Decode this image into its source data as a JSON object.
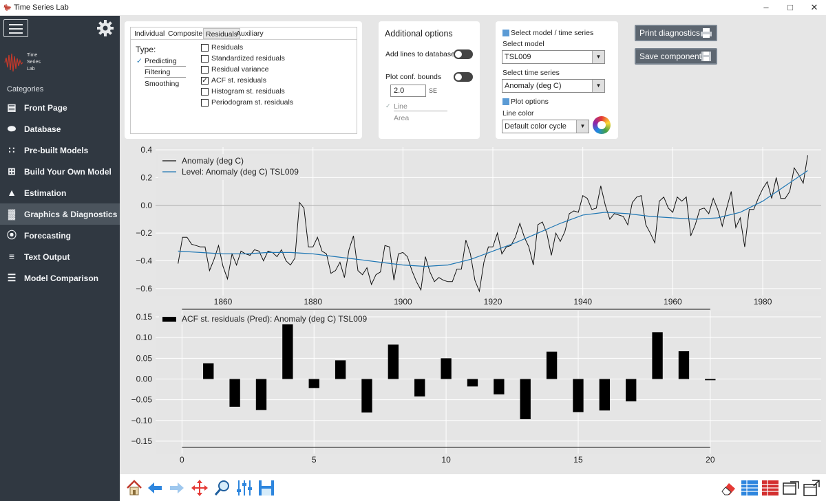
{
  "window": {
    "title": "Time Series Lab"
  },
  "sidebar": {
    "logo_text": [
      "Time",
      "Series",
      "Lab"
    ],
    "categories_label": "Categories",
    "items": [
      {
        "label": "Front Page",
        "icon": "front-page-icon"
      },
      {
        "label": "Database",
        "icon": "database-icon"
      },
      {
        "label": "Pre-built Models",
        "icon": "pre-built-models-icon"
      },
      {
        "label": "Build Your Own Model",
        "icon": "build-model-icon"
      },
      {
        "label": "Estimation",
        "icon": "estimation-icon"
      },
      {
        "label": "Graphics & Diagnostics",
        "icon": "graphics-icon",
        "active": true
      },
      {
        "label": "Forecasting",
        "icon": "binoculars-icon"
      },
      {
        "label": "Text Output",
        "icon": "text-output-icon"
      },
      {
        "label": "Model Comparison",
        "icon": "model-comparison-icon"
      }
    ]
  },
  "tabs": {
    "items": [
      "Individual",
      "Composite",
      "Residuals",
      "Auxiliary"
    ],
    "active": "Residuals"
  },
  "type_panel": {
    "label": "Type:",
    "options": [
      "Predicting",
      "Filtering",
      "Smoothing"
    ],
    "selected": "Predicting"
  },
  "residual_checks": [
    {
      "label": "Residuals",
      "checked": false
    },
    {
      "label": "Standardized residuals",
      "checked": false
    },
    {
      "label": "Residual variance",
      "checked": false
    },
    {
      "label": "ACF st. residuals",
      "checked": true
    },
    {
      "label": "Histogram st. residuals",
      "checked": false
    },
    {
      "label": "Periodogram st. residuals",
      "checked": false
    }
  ],
  "additional": {
    "title": "Additional options",
    "add_lines_label": "Add lines to database",
    "conf_bounds_label": "Plot conf. bounds",
    "conf_value": "2.0",
    "conf_unit": "SE",
    "line_label": "Line",
    "area_label": "Area"
  },
  "model_panel": {
    "select_header": "Select model / time series",
    "select_model_label": "Select model",
    "model_value": "TSL009",
    "select_series_label": "Select time series",
    "series_value": "Anomaly (deg C)",
    "plot_options_label": "Plot options",
    "line_color_label": "Line color",
    "line_color_value": "Default color cycle"
  },
  "buttons": {
    "print_diagnostics": "Print diagnostics",
    "save_components": "Save components"
  },
  "chart_data": [
    {
      "type": "line",
      "legend": "top-left",
      "ylim": [
        -0.65,
        0.42
      ],
      "yticks": [
        "0.4",
        "0.2",
        "0.0",
        "−0.2",
        "−0.4",
        "−0.6"
      ],
      "ytick_values": [
        0.4,
        0.2,
        0.0,
        -0.2,
        -0.4,
        -0.6
      ],
      "xticks": [
        "1860",
        "1880",
        "1900",
        "1920",
        "1940",
        "1960",
        "1980"
      ],
      "xtick_values": [
        1860,
        1880,
        1900,
        1920,
        1940,
        1960,
        1980
      ],
      "xlim": [
        1845,
        1993
      ],
      "grid": true,
      "series": [
        {
          "name": "Anomaly (deg C)",
          "color": "#111111",
          "x": [
            1850,
            1851,
            1852,
            1853,
            1854,
            1855,
            1856,
            1857,
            1858,
            1859,
            1860,
            1861,
            1862,
            1863,
            1864,
            1865,
            1866,
            1867,
            1868,
            1869,
            1870,
            1871,
            1872,
            1873,
            1874,
            1875,
            1876,
            1877,
            1878,
            1879,
            1880,
            1881,
            1882,
            1883,
            1884,
            1885,
            1886,
            1887,
            1888,
            1889,
            1890,
            1891,
            1892,
            1893,
            1894,
            1895,
            1896,
            1897,
            1898,
            1899,
            1900,
            1901,
            1902,
            1903,
            1904,
            1905,
            1906,
            1907,
            1908,
            1909,
            1910,
            1911,
            1912,
            1913,
            1914,
            1915,
            1916,
            1917,
            1918,
            1919,
            1920,
            1921,
            1922,
            1923,
            1924,
            1925,
            1926,
            1927,
            1928,
            1929,
            1930,
            1931,
            1932,
            1933,
            1934,
            1935,
            1936,
            1937,
            1938,
            1939,
            1940,
            1941,
            1942,
            1943,
            1944,
            1945,
            1946,
            1947,
            1948,
            1949,
            1950,
            1951,
            1952,
            1953,
            1954,
            1955,
            1956,
            1957,
            1958,
            1959,
            1960,
            1961,
            1962,
            1963,
            1964,
            1965,
            1966,
            1967,
            1968,
            1969,
            1970,
            1971,
            1972,
            1973,
            1974,
            1975,
            1976,
            1977,
            1978,
            1979,
            1980,
            1981,
            1982,
            1983,
            1984,
            1985,
            1986,
            1987,
            1988,
            1989,
            1990
          ],
          "y": [
            -0.42,
            -0.23,
            -0.23,
            -0.28,
            -0.29,
            -0.3,
            -0.3,
            -0.47,
            -0.39,
            -0.29,
            -0.44,
            -0.53,
            -0.35,
            -0.43,
            -0.33,
            -0.35,
            -0.36,
            -0.32,
            -0.33,
            -0.4,
            -0.33,
            -0.34,
            -0.37,
            -0.32,
            -0.4,
            -0.43,
            -0.38,
            0.02,
            -0.02,
            -0.3,
            -0.3,
            -0.23,
            -0.33,
            -0.35,
            -0.49,
            -0.47,
            -0.41,
            -0.52,
            -0.32,
            -0.22,
            -0.47,
            -0.5,
            -0.45,
            -0.57,
            -0.5,
            -0.48,
            -0.29,
            -0.3,
            -0.54,
            -0.35,
            -0.34,
            -0.37,
            -0.47,
            -0.55,
            -0.61,
            -0.37,
            -0.48,
            -0.55,
            -0.52,
            -0.54,
            -0.55,
            -0.55,
            -0.46,
            -0.46,
            -0.25,
            -0.35,
            -0.54,
            -0.62,
            -0.41,
            -0.3,
            -0.3,
            -0.2,
            -0.35,
            -0.3,
            -0.29,
            -0.23,
            -0.13,
            -0.23,
            -0.3,
            -0.43,
            -0.14,
            -0.12,
            -0.2,
            -0.36,
            -0.2,
            -0.26,
            -0.19,
            -0.06,
            -0.04,
            -0.05,
            0.07,
            0.05,
            -0.03,
            -0.02,
            0.14,
            0.0,
            -0.1,
            -0.06,
            -0.07,
            -0.08,
            -0.14,
            0.02,
            0.06,
            0.07,
            -0.14,
            -0.2,
            -0.27,
            0.03,
            0.06,
            -0.02,
            -0.05,
            0.06,
            0.03,
            0.06,
            -0.22,
            -0.14,
            -0.03,
            -0.02,
            -0.06,
            0.05,
            -0.03,
            -0.15,
            -0.02,
            0.1,
            -0.16,
            -0.09,
            -0.3,
            -0.03,
            -0.03,
            0.05,
            0.12,
            0.17,
            0.05,
            0.2,
            0.05,
            0.05,
            0.1,
            0.27,
            0.22,
            0.16,
            0.36
          ]
        },
        {
          "name": "Level: Anomaly (deg C) TSL009",
          "color": "#1f77b4",
          "x": [
            1850,
            1855,
            1860,
            1865,
            1870,
            1875,
            1880,
            1885,
            1890,
            1895,
            1900,
            1905,
            1910,
            1915,
            1920,
            1925,
            1930,
            1935,
            1940,
            1945,
            1950,
            1955,
            1960,
            1965,
            1970,
            1975,
            1980,
            1985,
            1990
          ],
          "y": [
            -0.33,
            -0.34,
            -0.35,
            -0.35,
            -0.34,
            -0.34,
            -0.35,
            -0.37,
            -0.39,
            -0.41,
            -0.43,
            -0.44,
            -0.43,
            -0.39,
            -0.33,
            -0.27,
            -0.2,
            -0.13,
            -0.07,
            -0.05,
            -0.06,
            -0.08,
            -0.09,
            -0.1,
            -0.09,
            -0.05,
            0.03,
            0.14,
            0.25
          ]
        }
      ]
    },
    {
      "type": "bar",
      "legend": "top-left",
      "series": [
        {
          "name": "ACF st. residuals (Pred): Anomaly (deg C) TSL009",
          "color": "#000000"
        }
      ],
      "x": [
        1,
        2,
        3,
        4,
        5,
        6,
        7,
        8,
        9,
        10,
        11,
        12,
        13,
        14,
        15,
        16,
        17,
        18,
        19,
        20
      ],
      "values": [
        0.038,
        -0.067,
        -0.075,
        0.137,
        -0.022,
        0.045,
        -0.081,
        0.083,
        -0.042,
        0.05,
        -0.018,
        -0.037,
        -0.097,
        0.066,
        -0.08,
        -0.076,
        -0.054,
        0.113,
        0.067,
        -0.003
      ],
      "conf_bound": 0.165,
      "ylim": [
        -0.18,
        0.165
      ],
      "yticks": [
        "0.15",
        "0.10",
        "0.05",
        "0.00",
        "−0.05",
        "−0.10",
        "−0.15"
      ],
      "ytick_values": [
        0.15,
        0.1,
        0.05,
        0.0,
        -0.05,
        -0.1,
        -0.15
      ],
      "xticks": [
        "0",
        "5",
        "10",
        "15",
        "20"
      ],
      "xtick_values": [
        0,
        5,
        10,
        15,
        20
      ],
      "xlim": [
        -1,
        24.2
      ],
      "grid": true
    }
  ]
}
